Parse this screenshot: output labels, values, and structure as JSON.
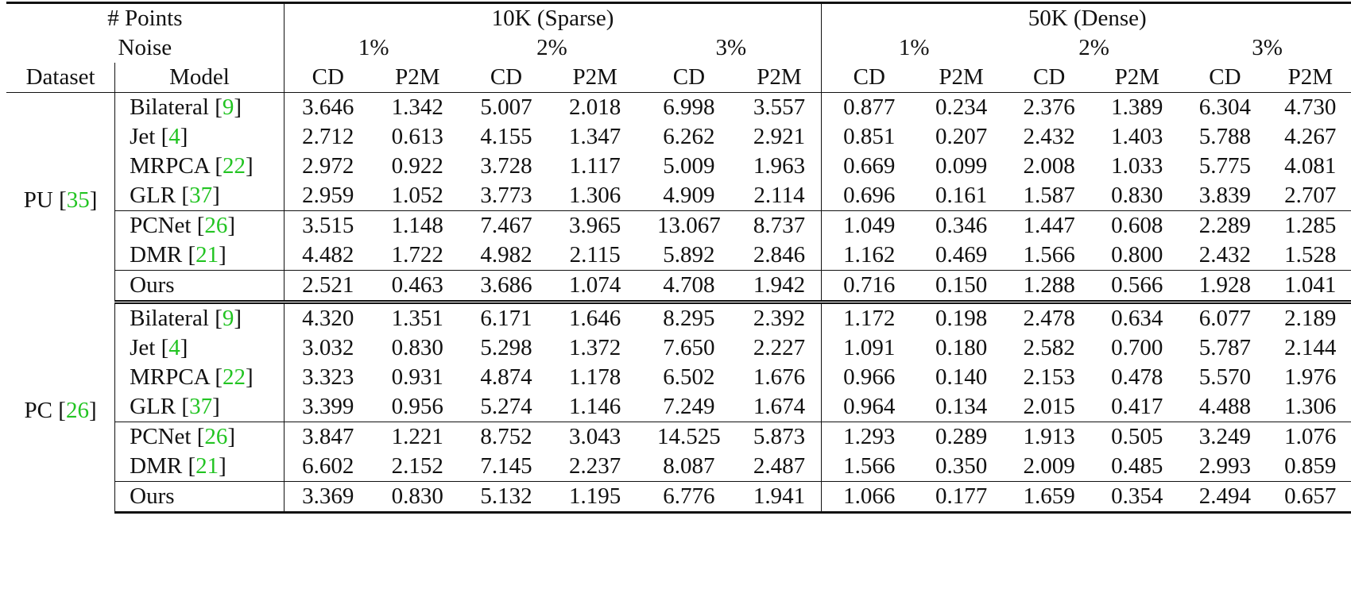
{
  "header": {
    "points_label": "# Points",
    "noise_label": "Noise",
    "dataset_label": "Dataset",
    "model_label": "Model",
    "sparse_label": "10K (Sparse)",
    "dense_label": "50K (Dense)",
    "noise_levels": [
      "1%",
      "2%",
      "3%",
      "1%",
      "2%",
      "3%"
    ],
    "metrics": [
      "CD",
      "P2M",
      "CD",
      "P2M",
      "CD",
      "P2M",
      "CD",
      "P2M",
      "CD",
      "P2M",
      "CD",
      "P2M"
    ]
  },
  "sections": [
    {
      "dataset": "PU",
      "dataset_cite": "35",
      "rows": [
        {
          "model": "Bilateral",
          "cite": "9",
          "values": [
            "3.646",
            "1.342",
            "5.007",
            "2.018",
            "6.998",
            "3.557",
            "0.877",
            "0.234",
            "2.376",
            "1.389",
            "6.304",
            "4.730"
          ],
          "bold": []
        },
        {
          "model": "Jet",
          "cite": "4",
          "values": [
            "2.712",
            "0.613",
            "4.155",
            "1.347",
            "6.262",
            "2.921",
            "0.851",
            "0.207",
            "2.432",
            "1.403",
            "5.788",
            "4.267"
          ],
          "bold": []
        },
        {
          "model": "MRPCA",
          "cite": "22",
          "values": [
            "2.972",
            "0.922",
            "3.728",
            "1.117",
            "5.009",
            "1.963",
            "0.669",
            "0.099",
            "2.008",
            "1.033",
            "5.775",
            "4.081"
          ],
          "bold": [
            6,
            7
          ]
        },
        {
          "model": "GLR",
          "cite": "37",
          "values": [
            "2.959",
            "1.052",
            "3.773",
            "1.306",
            "4.909",
            "2.114",
            "0.696",
            "0.161",
            "1.587",
            "0.830",
            "3.839",
            "2.707"
          ],
          "bold": []
        },
        {
          "model": "PCNet",
          "cite": "26",
          "values": [
            "3.515",
            "1.148",
            "7.467",
            "3.965",
            "13.067",
            "8.737",
            "1.049",
            "0.346",
            "1.447",
            "0.608",
            "2.289",
            "1.285"
          ],
          "bold": []
        },
        {
          "model": "DMR",
          "cite": "21",
          "values": [
            "4.482",
            "1.722",
            "4.982",
            "2.115",
            "5.892",
            "2.846",
            "1.162",
            "0.469",
            "1.566",
            "0.800",
            "2.432",
            "1.528"
          ],
          "bold": []
        },
        {
          "model": "Ours",
          "cite": "",
          "values": [
            "2.521",
            "0.463",
            "3.686",
            "1.074",
            "4.708",
            "1.942",
            "0.716",
            "0.150",
            "1.288",
            "0.566",
            "1.928",
            "1.041"
          ],
          "bold": [
            0,
            1,
            2,
            3,
            4,
            5,
            6,
            7,
            8,
            9,
            10,
            11
          ]
        }
      ]
    },
    {
      "dataset": "PC",
      "dataset_cite": "26",
      "rows": [
        {
          "model": "Bilateral",
          "cite": "9",
          "values": [
            "4.320",
            "1.351",
            "6.171",
            "1.646",
            "8.295",
            "2.392",
            "1.172",
            "0.198",
            "2.478",
            "0.634",
            "6.077",
            "2.189"
          ],
          "bold": []
        },
        {
          "model": "Jet",
          "cite": "4",
          "values": [
            "3.032",
            "0.830",
            "5.298",
            "1.372",
            "7.650",
            "2.227",
            "1.091",
            "0.180",
            "2.582",
            "0.700",
            "5.787",
            "2.144"
          ],
          "bold": [
            0,
            1
          ]
        },
        {
          "model": "MRPCA",
          "cite": "22",
          "values": [
            "3.323",
            "0.931",
            "4.874",
            "1.178",
            "6.502",
            "1.676",
            "0.966",
            "0.140",
            "2.153",
            "0.478",
            "5.570",
            "1.976"
          ],
          "bold": [
            2,
            4
          ]
        },
        {
          "model": "GLR",
          "cite": "37",
          "values": [
            "3.399",
            "0.956",
            "5.274",
            "1.146",
            "7.249",
            "1.674",
            "0.964",
            "0.134",
            "2.015",
            "0.417",
            "4.488",
            "1.306"
          ],
          "bold": [
            3,
            5,
            6,
            7
          ]
        },
        {
          "model": "PCNet",
          "cite": "26",
          "values": [
            "3.847",
            "1.221",
            "8.752",
            "3.043",
            "14.525",
            "5.873",
            "1.293",
            "0.289",
            "1.913",
            "0.505",
            "3.249",
            "1.076"
          ],
          "bold": []
        },
        {
          "model": "DMR",
          "cite": "21",
          "values": [
            "6.602",
            "2.152",
            "7.145",
            "2.237",
            "8.087",
            "2.487",
            "1.566",
            "0.350",
            "2.009",
            "0.485",
            "2.993",
            "0.859"
          ],
          "bold": []
        },
        {
          "model": "Ours",
          "cite": "",
          "values": [
            "3.369",
            "0.830",
            "5.132",
            "1.195",
            "6.776",
            "1.941",
            "1.066",
            "0.177",
            "1.659",
            "0.354",
            "2.494",
            "0.657"
          ],
          "bold": [
            0,
            1,
            2,
            3,
            4,
            5,
            6,
            7,
            8,
            9,
            10,
            11
          ]
        }
      ]
    }
  ]
}
